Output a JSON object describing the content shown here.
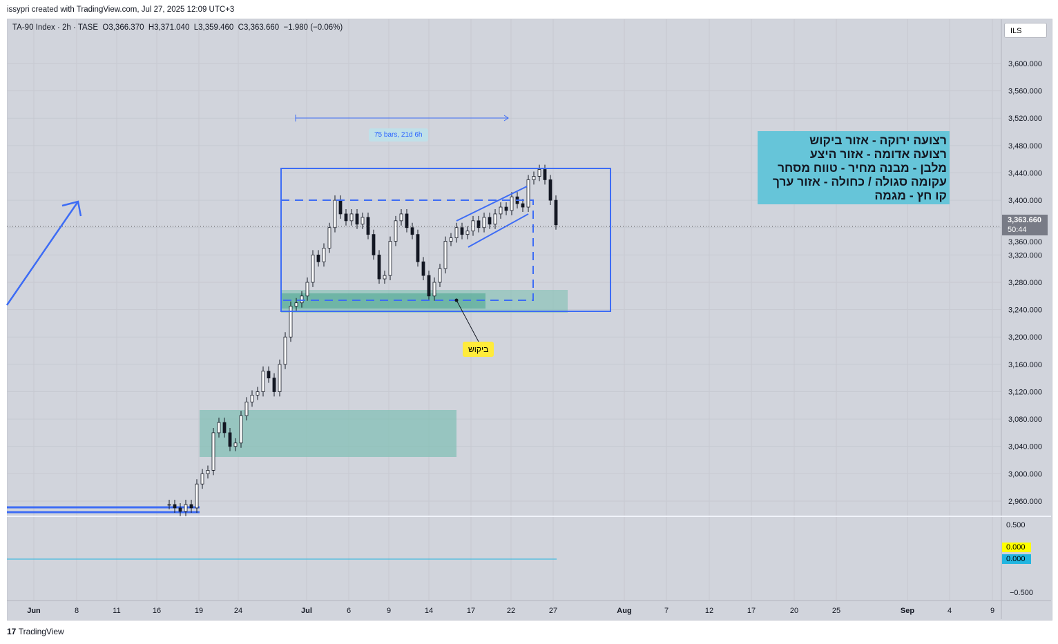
{
  "credit": "issypri created with TradingView.com, Jul 27, 2025 12:09 UTC+3",
  "legend": "TA-90 Index · 2h · TASE  O3,366.370  H3,371.040  L3,359.460  C3,363.660  −1.980 (−0.06%)",
  "currency": "ILS",
  "last_price": "3,363.660",
  "countdown": "50:44",
  "range_label": "75 bars, 21d 6h",
  "callout": "ביקוש",
  "note_lines": [
    "רצועה ירוקה - אזור ביקוש",
    "רצועה אדומה - אזור היצע",
    "מלבן - מבנה מחיר - טווח מסחר",
    "עקומה סגולה / כחולה - אזור ערך",
    "קו חץ - מגמה"
  ],
  "indicator": {
    "ticks": [
      "0.500",
      "−0.500"
    ],
    "value_yellow": "0.000",
    "value_blue": "0.000"
  },
  "footer": "TradingView",
  "colors": {
    "bg": "#d1d4dc",
    "drawing": "#3d6cf5",
    "zone": "#7fbfb3",
    "note": "#66c5d9"
  },
  "chart_data": {
    "type": "candlestick",
    "title": "TA-90 Index · 2h · TASE",
    "ylim": [
      2940,
      3640
    ],
    "y_ticks": [
      3600,
      3560,
      3520,
      3480,
      3440,
      3400,
      3360,
      3320,
      3280,
      3240,
      3200,
      3160,
      3120,
      3080,
      3040,
      3000,
      2960
    ],
    "y_tick_labels": [
      "3,600.000",
      "3,560.000",
      "3,520.000",
      "3,480.000",
      "3,440.000",
      "3,400.000",
      "3,360.000",
      "3,320.000",
      "3,280.000",
      "3,240.000",
      "3,200.000",
      "3,160.000",
      "3,120.000",
      "3,080.000",
      "3,040.000",
      "3,000.000",
      "2,960.000"
    ],
    "x_tick_labels": [
      "Jun",
      "8",
      "11",
      "16",
      "19",
      "24",
      "Jul",
      "6",
      "9",
      "14",
      "17",
      "22",
      "27",
      "Aug",
      "7",
      "12",
      "17",
      "20",
      "25",
      "Sep",
      "4",
      "9"
    ],
    "closes": [
      2955,
      2950,
      2945,
      2955,
      2950,
      2985,
      3000,
      3005,
      3060,
      3075,
      3060,
      3040,
      3045,
      3085,
      3105,
      3115,
      3120,
      3150,
      3140,
      3120,
      3160,
      3200,
      3245,
      3250,
      3260,
      3280,
      3320,
      3310,
      3330,
      3360,
      3400,
      3380,
      3370,
      3380,
      3365,
      3375,
      3350,
      3320,
      3285,
      3290,
      3340,
      3370,
      3380,
      3360,
      3350,
      3310,
      3290,
      3260,
      3280,
      3300,
      3340,
      3345,
      3360,
      3350,
      3355,
      3370,
      3360,
      3375,
      3365,
      3380,
      3390,
      3385,
      3405,
      3395,
      3390,
      3430,
      3435,
      3445,
      3430,
      3400,
      3364
    ]
  }
}
